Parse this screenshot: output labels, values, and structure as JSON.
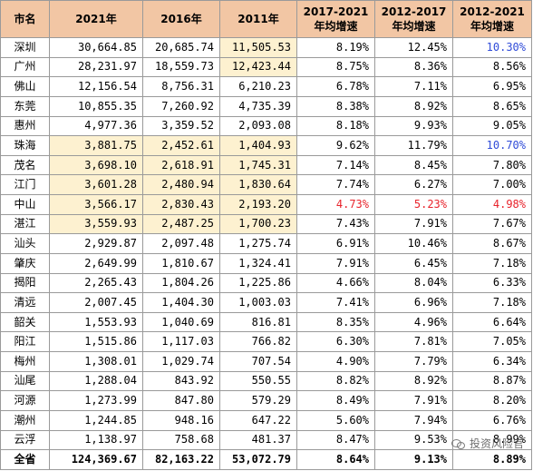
{
  "headers": [
    "市名",
    "2021年",
    "2016年",
    "2011年",
    "2017-2021",
    "年均增速",
    "2012-2017",
    "年均增速",
    "2012-2021",
    "年均增速"
  ],
  "rows": [
    {
      "city": "深圳",
      "v2021": "30,664.85",
      "v2016": "20,685.74",
      "v2011": "11,505.53",
      "g1": "8.19%",
      "g2": "12.45%",
      "g3": "10.30%",
      "hl2021": false,
      "hl2016": false,
      "hl2011": true,
      "red1": false,
      "red2": false,
      "g3color": "blue"
    },
    {
      "city": "广州",
      "v2021": "28,231.97",
      "v2016": "18,559.73",
      "v2011": "12,423.44",
      "g1": "8.75%",
      "g2": "8.36%",
      "g3": "8.56%",
      "hl2021": false,
      "hl2016": false,
      "hl2011": true,
      "red1": false,
      "red2": false,
      "g3color": ""
    },
    {
      "city": "佛山",
      "v2021": "12,156.54",
      "v2016": "8,756.31",
      "v2011": "6,210.23",
      "g1": "6.78%",
      "g2": "7.11%",
      "g3": "6.95%",
      "hl2021": false,
      "hl2016": false,
      "hl2011": false,
      "red1": false,
      "red2": false,
      "g3color": ""
    },
    {
      "city": "东莞",
      "v2021": "10,855.35",
      "v2016": "7,260.92",
      "v2011": "4,735.39",
      "g1": "8.38%",
      "g2": "8.92%",
      "g3": "8.65%",
      "hl2021": false,
      "hl2016": false,
      "hl2011": false,
      "red1": false,
      "red2": false,
      "g3color": ""
    },
    {
      "city": "惠州",
      "v2021": "4,977.36",
      "v2016": "3,359.52",
      "v2011": "2,093.08",
      "g1": "8.18%",
      "g2": "9.93%",
      "g3": "9.05%",
      "hl2021": false,
      "hl2016": false,
      "hl2011": false,
      "red1": false,
      "red2": false,
      "g3color": ""
    },
    {
      "city": "珠海",
      "v2021": "3,881.75",
      "v2016": "2,452.61",
      "v2011": "1,404.93",
      "g1": "9.62%",
      "g2": "11.79%",
      "g3": "10.70%",
      "hl2021": true,
      "hl2016": true,
      "hl2011": true,
      "red1": false,
      "red2": false,
      "g3color": "blue"
    },
    {
      "city": "茂名",
      "v2021": "3,698.10",
      "v2016": "2,618.91",
      "v2011": "1,745.31",
      "g1": "7.14%",
      "g2": "8.45%",
      "g3": "7.80%",
      "hl2021": true,
      "hl2016": true,
      "hl2011": true,
      "red1": false,
      "red2": false,
      "g3color": ""
    },
    {
      "city": "江门",
      "v2021": "3,601.28",
      "v2016": "2,480.94",
      "v2011": "1,830.64",
      "g1": "7.74%",
      "g2": "6.27%",
      "g3": "7.00%",
      "hl2021": true,
      "hl2016": true,
      "hl2011": true,
      "red1": false,
      "red2": false,
      "g3color": ""
    },
    {
      "city": "中山",
      "v2021": "3,566.17",
      "v2016": "2,830.43",
      "v2011": "2,193.20",
      "g1": "4.73%",
      "g2": "5.23%",
      "g3": "4.98%",
      "hl2021": true,
      "hl2016": true,
      "hl2011": true,
      "red1": true,
      "red2": true,
      "g3color": "red"
    },
    {
      "city": "湛江",
      "v2021": "3,559.93",
      "v2016": "2,487.25",
      "v2011": "1,700.23",
      "g1": "7.43%",
      "g2": "7.91%",
      "g3": "7.67%",
      "hl2021": true,
      "hl2016": true,
      "hl2011": true,
      "red1": false,
      "red2": false,
      "g3color": ""
    },
    {
      "city": "汕头",
      "v2021": "2,929.87",
      "v2016": "2,097.48",
      "v2011": "1,275.74",
      "g1": "6.91%",
      "g2": "10.46%",
      "g3": "8.67%",
      "hl2021": false,
      "hl2016": false,
      "hl2011": false,
      "red1": false,
      "red2": false,
      "g3color": ""
    },
    {
      "city": "肇庆",
      "v2021": "2,649.99",
      "v2016": "1,810.67",
      "v2011": "1,324.41",
      "g1": "7.91%",
      "g2": "6.45%",
      "g3": "7.18%",
      "hl2021": false,
      "hl2016": false,
      "hl2011": false,
      "red1": false,
      "red2": false,
      "g3color": ""
    },
    {
      "city": "揭阳",
      "v2021": "2,265.43",
      "v2016": "1,804.26",
      "v2011": "1,225.86",
      "g1": "4.66%",
      "g2": "8.04%",
      "g3": "6.33%",
      "hl2021": false,
      "hl2016": false,
      "hl2011": false,
      "red1": false,
      "red2": false,
      "g3color": ""
    },
    {
      "city": "清远",
      "v2021": "2,007.45",
      "v2016": "1,404.30",
      "v2011": "1,003.03",
      "g1": "7.41%",
      "g2": "6.96%",
      "g3": "7.18%",
      "hl2021": false,
      "hl2016": false,
      "hl2011": false,
      "red1": false,
      "red2": false,
      "g3color": ""
    },
    {
      "city": "韶关",
      "v2021": "1,553.93",
      "v2016": "1,040.69",
      "v2011": "816.81",
      "g1": "8.35%",
      "g2": "4.96%",
      "g3": "6.64%",
      "hl2021": false,
      "hl2016": false,
      "hl2011": false,
      "red1": false,
      "red2": false,
      "g3color": ""
    },
    {
      "city": "阳江",
      "v2021": "1,515.86",
      "v2016": "1,117.03",
      "v2011": "766.82",
      "g1": "6.30%",
      "g2": "7.81%",
      "g3": "7.05%",
      "hl2021": false,
      "hl2016": false,
      "hl2011": false,
      "red1": false,
      "red2": false,
      "g3color": ""
    },
    {
      "city": "梅州",
      "v2021": "1,308.01",
      "v2016": "1,029.74",
      "v2011": "707.54",
      "g1": "4.90%",
      "g2": "7.79%",
      "g3": "6.34%",
      "hl2021": false,
      "hl2016": false,
      "hl2011": false,
      "red1": false,
      "red2": false,
      "g3color": ""
    },
    {
      "city": "汕尾",
      "v2021": "1,288.04",
      "v2016": "843.92",
      "v2011": "550.55",
      "g1": "8.82%",
      "g2": "8.92%",
      "g3": "8.87%",
      "hl2021": false,
      "hl2016": false,
      "hl2011": false,
      "red1": false,
      "red2": false,
      "g3color": ""
    },
    {
      "city": "河源",
      "v2021": "1,273.99",
      "v2016": "847.80",
      "v2011": "579.29",
      "g1": "8.49%",
      "g2": "7.91%",
      "g3": "8.20%",
      "hl2021": false,
      "hl2016": false,
      "hl2011": false,
      "red1": false,
      "red2": false,
      "g3color": ""
    },
    {
      "city": "潮州",
      "v2021": "1,244.85",
      "v2016": "948.16",
      "v2011": "647.22",
      "g1": "5.60%",
      "g2": "7.94%",
      "g3": "6.76%",
      "hl2021": false,
      "hl2016": false,
      "hl2011": false,
      "red1": false,
      "red2": false,
      "g3color": ""
    },
    {
      "city": "云浮",
      "v2021": "1,138.97",
      "v2016": "758.68",
      "v2011": "481.37",
      "g1": "8.47%",
      "g2": "9.53%",
      "g3": "8.99%",
      "hl2021": false,
      "hl2016": false,
      "hl2011": false,
      "red1": false,
      "red2": false,
      "g3color": ""
    }
  ],
  "total": {
    "city": "全省",
    "v2021": "124,369.67",
    "v2016": "82,163.22",
    "v2011": "53,072.79",
    "g1": "8.64%",
    "g2": "9.13%",
    "g3": "8.89%"
  },
  "watermark": "投资风险官",
  "colors": {
    "header_bg": "#f2c6a4",
    "highlight_bg": "#fdf1d0",
    "red": "#e8232b",
    "blue": "#2f4bd8",
    "border": "#9a9a9a"
  }
}
